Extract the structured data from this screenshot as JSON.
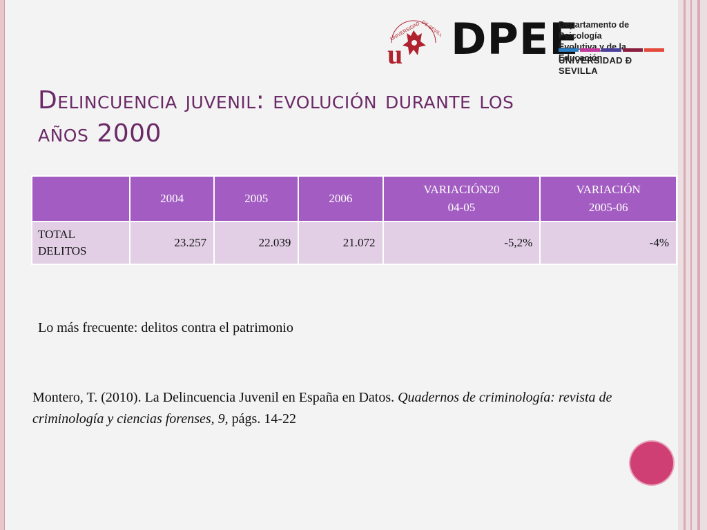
{
  "header": {
    "logo_main": "DPEE",
    "dept_line1": "Departamento de Psicología",
    "dept_line2": "Evolutiva y de la Educación",
    "university": "UNIVERSIDAD Ð SEVILLA",
    "seal_text": "UNIVERSIDAD DE SEVILLA",
    "bar_colors": [
      "#2b7fc4",
      "#c0399b",
      "#4b3f9c",
      "#8a1e3e",
      "#e34a3a"
    ]
  },
  "slide": {
    "title_line1": "Delincuencia juvenil: evolución durante los",
    "title_line2": "años 2000"
  },
  "table": {
    "headers": [
      "",
      "2004",
      "2005",
      "2006",
      "VARIACIÓN20\n04-05",
      "VARIACIÓN\n2005-06"
    ],
    "rows": [
      {
        "label": "TOTAL DELITOS",
        "cells": [
          "23.257",
          "22.039",
          "21.072",
          "-5,2%",
          "-4%"
        ]
      }
    ]
  },
  "note": "Lo más frecuente: delitos contra el patrimonio",
  "reference": {
    "plain": "Montero, T. (2010). La Delincuencia Juvenil en España en Datos. ",
    "italic": "Quadernos de criminología: revista de criminología y ciencias forenses, 9,",
    "tail": " págs. 14-22"
  },
  "colors": {
    "title": "#6b2a67",
    "table_header": "#a35dc2",
    "table_row": "#e2cfe6",
    "accent_dot": "#d03f73"
  }
}
